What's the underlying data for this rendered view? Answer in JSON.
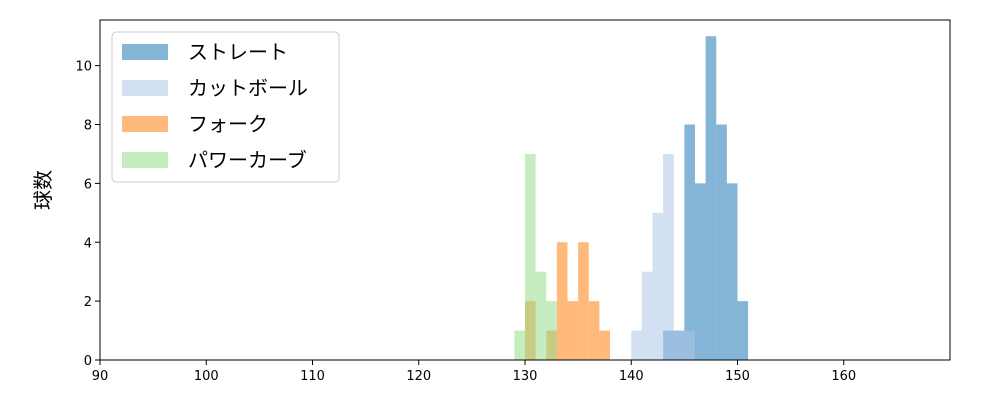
{
  "chart_data": {
    "type": "histogram",
    "y_label": "球数",
    "xlim": [
      90,
      170
    ],
    "ylim": [
      0,
      11.55
    ],
    "xticks": [
      90,
      100,
      110,
      120,
      130,
      140,
      150,
      160
    ],
    "yticks": [
      0,
      2,
      4,
      6,
      8,
      10
    ],
    "legend": "upper left",
    "series": [
      {
        "name": "ストレート",
        "color": "#1f77b4",
        "bins": [
          143,
          144,
          145,
          146,
          147,
          148,
          149,
          150,
          151
        ],
        "counts": [
          1,
          1,
          8,
          6,
          11,
          8,
          6,
          2
        ]
      },
      {
        "name": "カットボール",
        "color": "#aec7e8",
        "bins": [
          140,
          141,
          142,
          143,
          144,
          145,
          146
        ],
        "counts": [
          1,
          3,
          5,
          7,
          1,
          1
        ]
      },
      {
        "name": "フォーク",
        "color": "#ff7f0e",
        "bins": [
          130,
          131,
          132,
          133,
          134,
          135,
          136,
          137,
          138
        ],
        "counts": [
          2,
          0,
          1,
          4,
          2,
          4,
          2,
          1
        ]
      },
      {
        "name": "パワーカーブ",
        "color": "#98df8a",
        "bins": [
          129,
          130,
          131,
          132,
          133
        ],
        "counts": [
          1,
          7,
          3,
          2
        ]
      }
    ]
  }
}
